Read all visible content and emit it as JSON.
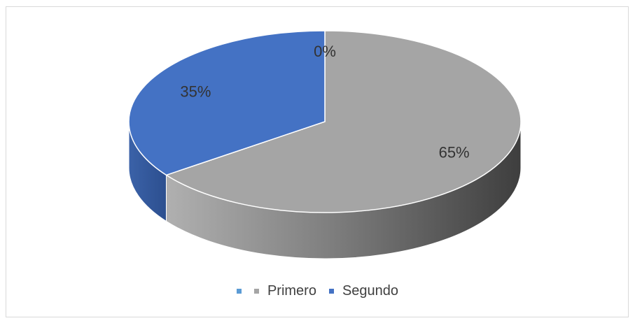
{
  "chart_data": {
    "type": "pie",
    "style": "3d",
    "categories": [
      "",
      "Primero",
      "Segundo"
    ],
    "values": [
      0,
      65,
      35
    ],
    "data_labels": [
      "0%",
      "65%",
      "35%"
    ],
    "colors": [
      "#5b9bd5",
      "#a5a5a5",
      "#4472c4"
    ],
    "legend_position": "bottom",
    "title": ""
  }
}
